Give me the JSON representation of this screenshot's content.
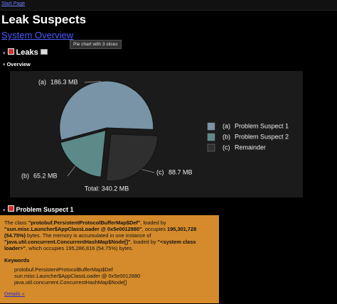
{
  "nav": {
    "start": "Start Page"
  },
  "header": {
    "title": "Leak Suspects"
  },
  "system_overview": "System Overview",
  "tooltip": "Pie chart with 3 slices",
  "leaks": "Leaks",
  "overview": "Overview",
  "pie": {
    "slices": [
      {
        "tag": "(a)",
        "name": "Problem Suspect 1",
        "value": 186.3,
        "value_label": "186.3 MB",
        "color": "#7894a6"
      },
      {
        "tag": "(b)",
        "name": "Problem Suspect 2",
        "value": 65.2,
        "value_label": "65.2 MB",
        "color": "#5b8a88"
      },
      {
        "tag": "(c)",
        "name": "Remainder",
        "value": 88.7,
        "value_label": "88.7 MB",
        "color": "#2f2f2f"
      }
    ],
    "total": "Total: 340.2 MB"
  },
  "suspect": {
    "title": "Problem Suspect 1",
    "description": [
      "The class ",
      "\"protobuf.PersistentProtocolBufferMap$Def\"",
      ", loaded by ",
      "\"sun.misc.Launcher$AppClassLoader @ 0x5e0012880\"",
      ", occupies ",
      "195,301,728 (54.75%)",
      " bytes. The memory is accumulated in one instance of ",
      "\"java.util.concurrent.ConcurrentHashMap$Node[]\"",
      ", loaded by ",
      "\"<system class loader>\"",
      ", which occupies ",
      "195,286,816 (54.75%)",
      " bytes."
    ],
    "keywords_title": "Keywords",
    "keywords": [
      "protobuf.PersistentProtocolBufferMap$Def",
      "sun.misc.Launcher$AppClassLoader @ 0x5e0012880",
      "java.util.concurrent.ConcurrentHashMap$Node[]"
    ],
    "details": "Details »"
  }
}
